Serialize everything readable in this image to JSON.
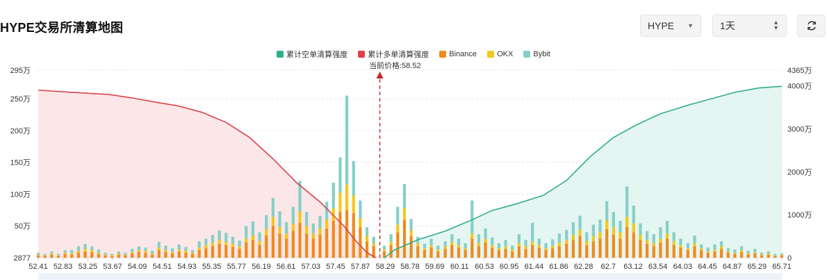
{
  "header": {
    "title": "HYPE交易所清算地图",
    "symbol_value": "HYPE",
    "period_value": "1天"
  },
  "chart_data": {
    "type": "bar",
    "current_price_label": "当前价格:58.52",
    "current_price": 58.52,
    "legend": [
      {
        "name": "累计空单清算强度",
        "color": "#2fae8a"
      },
      {
        "name": "累计多单清算强度",
        "color": "#e0404a"
      },
      {
        "name": "Binance",
        "color": "#f08a1c"
      },
      {
        "name": "OKX",
        "color": "#f2c81c"
      },
      {
        "name": "Bybit",
        "color": "#85cfc9"
      }
    ],
    "x_tick_labels": [
      "52.41",
      "52.83",
      "53.25",
      "53.67",
      "54.09",
      "54.51",
      "54.93",
      "55.35",
      "55.77",
      "56.19",
      "56.61",
      "57.03",
      "57.45",
      "57.87",
      "58.29",
      "58.78",
      "59.69",
      "60.11",
      "60.53",
      "60.95",
      "61.44",
      "61.86",
      "62.28",
      "62.7",
      "63.12",
      "63.54",
      "64.03",
      "64.45",
      "64.87",
      "65.29",
      "65.71"
    ],
    "left_axis": {
      "labels": [
        "2877",
        "50万",
        "100万",
        "150万",
        "200万",
        "250万",
        "295万"
      ],
      "values": [
        0,
        50,
        100,
        150,
        200,
        250,
        295
      ],
      "unit": "万"
    },
    "right_axis": {
      "labels": [
        "0",
        "1000万",
        "2000万",
        "3000万",
        "4000万",
        "4365万"
      ],
      "values": [
        0,
        1000,
        2000,
        3000,
        4000,
        4365
      ],
      "unit": "万"
    },
    "x_range": [
      52.41,
      65.71
    ],
    "bar_series": [
      "Binance",
      "OKX",
      "Bybit"
    ],
    "bars": [
      {
        "x": 52.41,
        "binance": 4,
        "okx": 1,
        "bybit": 3
      },
      {
        "x": 52.53,
        "binance": 3,
        "okx": 1,
        "bybit": 2
      },
      {
        "x": 52.65,
        "binance": 5,
        "okx": 2,
        "bybit": 3
      },
      {
        "x": 52.77,
        "binance": 3,
        "okx": 1,
        "bybit": 2
      },
      {
        "x": 52.89,
        "binance": 6,
        "okx": 2,
        "bybit": 4
      },
      {
        "x": 53.01,
        "binance": 5,
        "okx": 2,
        "bybit": 5
      },
      {
        "x": 53.13,
        "binance": 8,
        "okx": 3,
        "bybit": 7
      },
      {
        "x": 53.25,
        "binance": 10,
        "okx": 4,
        "bybit": 8
      },
      {
        "x": 53.37,
        "binance": 9,
        "okx": 3,
        "bybit": 6
      },
      {
        "x": 53.49,
        "binance": 6,
        "okx": 2,
        "bybit": 5
      },
      {
        "x": 53.61,
        "binance": 4,
        "okx": 1,
        "bybit": 3
      },
      {
        "x": 53.73,
        "binance": 3,
        "okx": 1,
        "bybit": 2
      },
      {
        "x": 53.85,
        "binance": 5,
        "okx": 2,
        "bybit": 3
      },
      {
        "x": 53.97,
        "binance": 4,
        "okx": 1,
        "bybit": 3
      },
      {
        "x": 54.09,
        "binance": 7,
        "okx": 2,
        "bybit": 5
      },
      {
        "x": 54.21,
        "binance": 9,
        "okx": 3,
        "bybit": 6
      },
      {
        "x": 54.33,
        "binance": 8,
        "okx": 3,
        "bybit": 5
      },
      {
        "x": 54.45,
        "binance": 5,
        "okx": 2,
        "bybit": 4
      },
      {
        "x": 54.57,
        "binance": 12,
        "okx": 4,
        "bybit": 9
      },
      {
        "x": 54.69,
        "binance": 9,
        "okx": 3,
        "bybit": 7
      },
      {
        "x": 54.81,
        "binance": 7,
        "okx": 2,
        "bybit": 6
      },
      {
        "x": 54.93,
        "binance": 10,
        "okx": 3,
        "bybit": 8
      },
      {
        "x": 55.05,
        "binance": 8,
        "okx": 3,
        "bybit": 6
      },
      {
        "x": 55.17,
        "binance": 6,
        "okx": 2,
        "bybit": 4
      },
      {
        "x": 55.29,
        "binance": 12,
        "okx": 4,
        "bybit": 10
      },
      {
        "x": 55.41,
        "binance": 15,
        "okx": 5,
        "bybit": 10
      },
      {
        "x": 55.53,
        "binance": 18,
        "okx": 6,
        "bybit": 12
      },
      {
        "x": 55.65,
        "binance": 22,
        "okx": 6,
        "bybit": 15
      },
      {
        "x": 55.77,
        "binance": 20,
        "okx": 5,
        "bybit": 14
      },
      {
        "x": 55.89,
        "binance": 17,
        "okx": 5,
        "bybit": 11
      },
      {
        "x": 56.01,
        "binance": 14,
        "okx": 4,
        "bybit": 9
      },
      {
        "x": 56.13,
        "binance": 24,
        "okx": 6,
        "bybit": 20
      },
      {
        "x": 56.25,
        "binance": 28,
        "okx": 7,
        "bybit": 22
      },
      {
        "x": 56.37,
        "binance": 20,
        "okx": 6,
        "bybit": 14
      },
      {
        "x": 56.49,
        "binance": 35,
        "okx": 10,
        "bybit": 22
      },
      {
        "x": 56.61,
        "binance": 50,
        "okx": 14,
        "bybit": 30
      },
      {
        "x": 56.73,
        "binance": 38,
        "okx": 10,
        "bybit": 25
      },
      {
        "x": 56.85,
        "binance": 30,
        "okx": 8,
        "bybit": 18
      },
      {
        "x": 56.97,
        "binance": 42,
        "okx": 12,
        "bybit": 26
      },
      {
        "x": 57.09,
        "binance": 55,
        "okx": 18,
        "bybit": 48
      },
      {
        "x": 57.21,
        "binance": 38,
        "okx": 12,
        "bybit": 22
      },
      {
        "x": 57.33,
        "binance": 30,
        "okx": 8,
        "bybit": 16
      },
      {
        "x": 57.45,
        "binance": 36,
        "okx": 10,
        "bybit": 20
      },
      {
        "x": 57.57,
        "binance": 46,
        "okx": 14,
        "bybit": 28
      },
      {
        "x": 57.69,
        "binance": 58,
        "okx": 20,
        "bybit": 40
      },
      {
        "x": 57.81,
        "binance": 72,
        "okx": 30,
        "bybit": 56
      },
      {
        "x": 57.93,
        "binance": 75,
        "okx": 40,
        "bybit": 140
      },
      {
        "x": 58.05,
        "binance": 70,
        "okx": 28,
        "bybit": 54
      },
      {
        "x": 58.17,
        "binance": 48,
        "okx": 14,
        "bybit": 28
      },
      {
        "x": 58.29,
        "binance": 26,
        "okx": 8,
        "bybit": 14
      },
      {
        "x": 58.41,
        "binance": 18,
        "okx": 5,
        "bybit": 10
      },
      {
        "x": 58.6,
        "binance": 10,
        "okx": 3,
        "bybit": 6
      },
      {
        "x": 58.72,
        "binance": 20,
        "okx": 5,
        "bybit": 12
      },
      {
        "x": 58.84,
        "binance": 40,
        "okx": 12,
        "bybit": 28
      },
      {
        "x": 58.96,
        "binance": 60,
        "okx": 18,
        "bybit": 38
      },
      {
        "x": 59.08,
        "binance": 34,
        "okx": 9,
        "bybit": 18
      },
      {
        "x": 59.2,
        "binance": 18,
        "okx": 5,
        "bybit": 10
      },
      {
        "x": 59.32,
        "binance": 12,
        "okx": 3,
        "bybit": 7
      },
      {
        "x": 59.44,
        "binance": 16,
        "okx": 4,
        "bybit": 10
      },
      {
        "x": 59.56,
        "binance": 10,
        "okx": 3,
        "bybit": 6
      },
      {
        "x": 59.69,
        "binance": 14,
        "okx": 4,
        "bybit": 8
      },
      {
        "x": 59.81,
        "binance": 20,
        "okx": 5,
        "bybit": 12
      },
      {
        "x": 59.93,
        "binance": 16,
        "okx": 4,
        "bybit": 10
      },
      {
        "x": 60.05,
        "binance": 12,
        "okx": 3,
        "bybit": 8
      },
      {
        "x": 60.17,
        "binance": 30,
        "okx": 8,
        "bybit": 52
      },
      {
        "x": 60.29,
        "binance": 18,
        "okx": 5,
        "bybit": 14
      },
      {
        "x": 60.41,
        "binance": 24,
        "okx": 6,
        "bybit": 16
      },
      {
        "x": 60.53,
        "binance": 16,
        "okx": 4,
        "bybit": 12
      },
      {
        "x": 60.65,
        "binance": 12,
        "okx": 3,
        "bybit": 8
      },
      {
        "x": 60.77,
        "binance": 14,
        "okx": 4,
        "bybit": 10
      },
      {
        "x": 60.89,
        "binance": 10,
        "okx": 3,
        "bybit": 6
      },
      {
        "x": 61.01,
        "binance": 18,
        "okx": 5,
        "bybit": 14
      },
      {
        "x": 61.13,
        "binance": 14,
        "okx": 4,
        "bybit": 10
      },
      {
        "x": 61.25,
        "binance": 20,
        "okx": 5,
        "bybit": 30
      },
      {
        "x": 61.37,
        "binance": 16,
        "okx": 4,
        "bybit": 10
      },
      {
        "x": 61.49,
        "binance": 12,
        "okx": 3,
        "bybit": 8
      },
      {
        "x": 61.61,
        "binance": 15,
        "okx": 4,
        "bybit": 10
      },
      {
        "x": 61.73,
        "binance": 18,
        "okx": 6,
        "bybit": 14
      },
      {
        "x": 61.86,
        "binance": 22,
        "okx": 6,
        "bybit": 16
      },
      {
        "x": 61.98,
        "binance": 28,
        "okx": 8,
        "bybit": 20
      },
      {
        "x": 62.1,
        "binance": 34,
        "okx": 10,
        "bybit": 22
      },
      {
        "x": 62.22,
        "binance": 20,
        "okx": 6,
        "bybit": 14
      },
      {
        "x": 62.34,
        "binance": 26,
        "okx": 8,
        "bybit": 18
      },
      {
        "x": 62.46,
        "binance": 30,
        "okx": 10,
        "bybit": 20
      },
      {
        "x": 62.58,
        "binance": 45,
        "okx": 14,
        "bybit": 30
      },
      {
        "x": 62.7,
        "binance": 36,
        "okx": 12,
        "bybit": 24
      },
      {
        "x": 62.82,
        "binance": 30,
        "okx": 10,
        "bybit": 18
      },
      {
        "x": 62.94,
        "binance": 48,
        "okx": 16,
        "bybit": 48
      },
      {
        "x": 63.06,
        "binance": 40,
        "okx": 14,
        "bybit": 28
      },
      {
        "x": 63.18,
        "binance": 28,
        "okx": 8,
        "bybit": 18
      },
      {
        "x": 63.3,
        "binance": 22,
        "okx": 6,
        "bybit": 14
      },
      {
        "x": 63.42,
        "binance": 18,
        "okx": 5,
        "bybit": 14
      },
      {
        "x": 63.54,
        "binance": 24,
        "okx": 6,
        "bybit": 18
      },
      {
        "x": 63.66,
        "binance": 30,
        "okx": 8,
        "bybit": 20
      },
      {
        "x": 63.78,
        "binance": 20,
        "okx": 6,
        "bybit": 14
      },
      {
        "x": 63.9,
        "binance": 16,
        "okx": 4,
        "bybit": 10
      },
      {
        "x": 64.03,
        "binance": 12,
        "okx": 3,
        "bybit": 8
      },
      {
        "x": 64.15,
        "binance": 18,
        "okx": 5,
        "bybit": 12
      },
      {
        "x": 64.27,
        "binance": 12,
        "okx": 3,
        "bybit": 6
      },
      {
        "x": 64.39,
        "binance": 8,
        "okx": 2,
        "bybit": 6
      },
      {
        "x": 64.51,
        "binance": 10,
        "okx": 3,
        "bybit": 8
      },
      {
        "x": 64.63,
        "binance": 14,
        "okx": 4,
        "bybit": 8
      },
      {
        "x": 64.75,
        "binance": 8,
        "okx": 2,
        "bybit": 5
      },
      {
        "x": 64.87,
        "binance": 6,
        "okx": 2,
        "bybit": 5
      },
      {
        "x": 64.99,
        "binance": 9,
        "okx": 3,
        "bybit": 6
      },
      {
        "x": 65.11,
        "binance": 5,
        "okx": 2,
        "bybit": 4
      },
      {
        "x": 65.23,
        "binance": 7,
        "okx": 2,
        "bybit": 5
      },
      {
        "x": 65.35,
        "binance": 4,
        "okx": 1,
        "bybit": 3
      },
      {
        "x": 65.47,
        "binance": 5,
        "okx": 2,
        "bybit": 3
      },
      {
        "x": 65.59,
        "binance": 3,
        "okx": 1,
        "bybit": 2
      },
      {
        "x": 65.71,
        "binance": 4,
        "okx": 1,
        "bybit": 2
      }
    ],
    "cumulative_long": [
      {
        "x": 52.41,
        "y": 3900
      },
      {
        "x": 53.0,
        "y": 3850
      },
      {
        "x": 53.67,
        "y": 3800
      },
      {
        "x": 54.09,
        "y": 3720
      },
      {
        "x": 54.51,
        "y": 3620
      },
      {
        "x": 54.93,
        "y": 3530
      },
      {
        "x": 55.35,
        "y": 3380
      },
      {
        "x": 55.77,
        "y": 3150
      },
      {
        "x": 56.19,
        "y": 2800
      },
      {
        "x": 56.61,
        "y": 2300
      },
      {
        "x": 57.03,
        "y": 1750
      },
      {
        "x": 57.45,
        "y": 1300
      },
      {
        "x": 57.87,
        "y": 750
      },
      {
        "x": 58.1,
        "y": 380
      },
      {
        "x": 58.29,
        "y": 120
      },
      {
        "x": 58.45,
        "y": 0
      }
    ],
    "cumulative_short": [
      {
        "x": 58.6,
        "y": 0
      },
      {
        "x": 58.78,
        "y": 180
      },
      {
        "x": 59.2,
        "y": 420
      },
      {
        "x": 59.69,
        "y": 620
      },
      {
        "x": 60.11,
        "y": 850
      },
      {
        "x": 60.53,
        "y": 1100
      },
      {
        "x": 60.95,
        "y": 1250
      },
      {
        "x": 61.44,
        "y": 1450
      },
      {
        "x": 61.86,
        "y": 1800
      },
      {
        "x": 62.28,
        "y": 2350
      },
      {
        "x": 62.7,
        "y": 2800
      },
      {
        "x": 63.12,
        "y": 3100
      },
      {
        "x": 63.54,
        "y": 3350
      },
      {
        "x": 64.03,
        "y": 3550
      },
      {
        "x": 64.45,
        "y": 3700
      },
      {
        "x": 64.87,
        "y": 3850
      },
      {
        "x": 65.29,
        "y": 3950
      },
      {
        "x": 65.71,
        "y": 3990
      }
    ]
  }
}
